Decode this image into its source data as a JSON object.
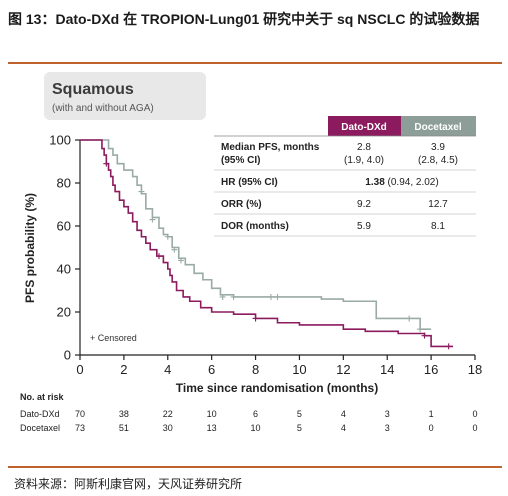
{
  "figure": {
    "title": "图 13：Dato-DXd 在 TROPION-Lung01 研究中关于 sq NSCLC 的试验数据",
    "source": "资料来源：阿斯利康官网，天风证券研究所"
  },
  "panel": {
    "title": "Squamous",
    "subtitle": "(with and without AGA)"
  },
  "summary_table": {
    "columns": [
      "Dato-DXd",
      "Docetaxel"
    ],
    "rows": [
      {
        "label": "Median PFS, months",
        "label2": "(95% CI)",
        "dato": "2.8",
        "dato2": "(1.9, 4.0)",
        "doce": "3.9",
        "doce2": "(2.8, 4.5)"
      },
      {
        "label": "HR (95% CI)",
        "merged_bold": "1.38",
        "merged_rest": " (0.94, 2.02)"
      },
      {
        "label": "ORR (%)",
        "dato": "9.2",
        "doce": "12.7"
      },
      {
        "label": "DOR (months)",
        "dato": "5.9",
        "doce": "8.1"
      }
    ]
  },
  "risk_table": {
    "header": "No. at risk",
    "rows": [
      {
        "name": "Dato-DXd",
        "values": [
          "70",
          "38",
          "22",
          "10",
          "6",
          "5",
          "4",
          "3",
          "1",
          "0"
        ]
      },
      {
        "name": "Docetaxel",
        "values": [
          "73",
          "51",
          "30",
          "13",
          "10",
          "5",
          "4",
          "3",
          "0",
          "0"
        ]
      }
    ]
  },
  "censored_note": "+ Censored",
  "colors": {
    "dato": "#8b1a5e",
    "doce": "#9aaaa5",
    "doce_header": "#8d9e99",
    "accent_rule": "#c0622d"
  },
  "chart_data": {
    "type": "line",
    "title": "",
    "xlabel": "Time since randomisation (months)",
    "ylabel": "PFS probability (%)",
    "xlim": [
      0,
      18
    ],
    "ylim": [
      0,
      100
    ],
    "xticks": [
      "0",
      "2",
      "4",
      "6",
      "8",
      "10",
      "12",
      "14",
      "16",
      "18"
    ],
    "yticks": [
      "0",
      "20",
      "40",
      "60",
      "80",
      "100"
    ],
    "grid": false,
    "series": [
      {
        "name": "Dato-DXd",
        "x": [
          0,
          0.8,
          1.0,
          1.1,
          1.2,
          1.3,
          1.4,
          1.5,
          1.6,
          1.8,
          2.0,
          2.2,
          2.4,
          2.6,
          2.8,
          3.0,
          3.2,
          3.5,
          3.8,
          4.0,
          4.1,
          4.2,
          4.4,
          4.7,
          5.0,
          5.5,
          6.0,
          7.0,
          8.0,
          9.0,
          10.0,
          12.0,
          13.0,
          14.5,
          15.7,
          16.0,
          17.0
        ],
        "y": [
          100,
          100,
          96,
          93,
          89,
          86,
          83,
          79,
          76,
          72,
          69,
          66,
          62,
          58,
          55,
          52,
          49,
          46,
          43,
          40,
          37,
          34,
          30,
          27,
          25,
          22,
          20,
          19,
          17,
          15,
          14,
          12,
          11,
          10,
          9,
          4,
          4
        ],
        "censor_x": [
          1.2,
          3.6,
          8.0,
          15.7,
          16.8
        ],
        "censor_y": [
          89,
          46,
          17,
          9,
          4
        ]
      },
      {
        "name": "Docetaxel",
        "x": [
          0,
          1.0,
          1.3,
          1.5,
          1.7,
          2.0,
          2.4,
          2.6,
          2.8,
          3.0,
          3.3,
          3.6,
          3.8,
          4.0,
          4.2,
          4.5,
          4.8,
          5.2,
          5.6,
          6.0,
          6.4,
          7.0,
          8.0,
          10.0,
          11.0,
          12.0,
          13.5,
          14.0,
          15.0,
          15.5,
          16.0
        ],
        "y": [
          100,
          100,
          96,
          93,
          89,
          86,
          83,
          79,
          75,
          68,
          64,
          59,
          56,
          55,
          50,
          45,
          42,
          38,
          35,
          31,
          28,
          27,
          27,
          27,
          26,
          25,
          17,
          17,
          17,
          12,
          12
        ],
        "censor_x": [
          2.8,
          3.3,
          4.0,
          4.3,
          4.6,
          6.5,
          7.0,
          8.7,
          9.0,
          15.0,
          15.5
        ],
        "censor_y": [
          76,
          63,
          55,
          49,
          44,
          27,
          27,
          27,
          27,
          17,
          12
        ]
      }
    ]
  }
}
